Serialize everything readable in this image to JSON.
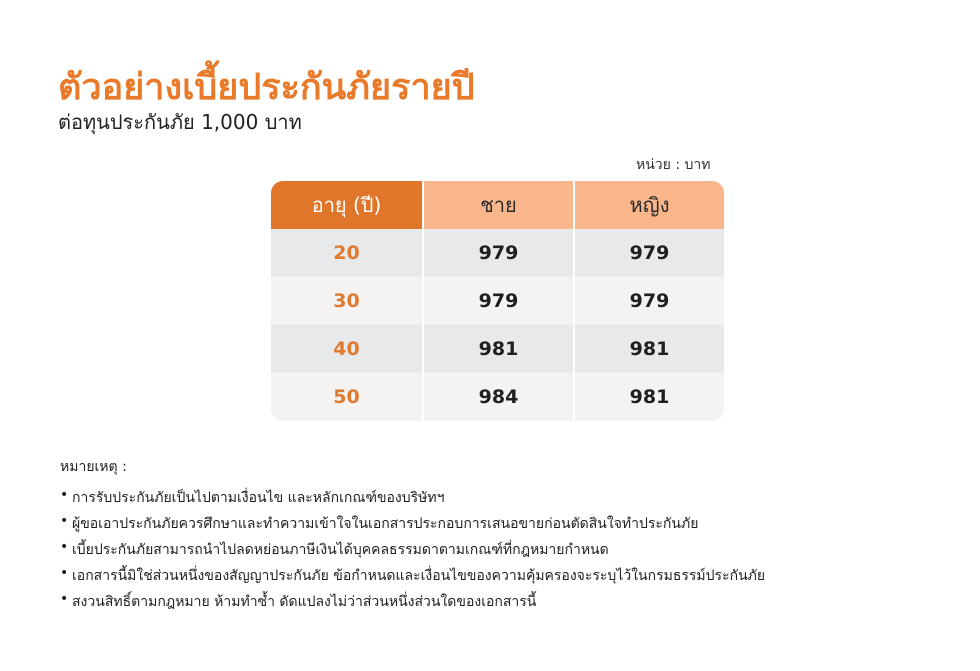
{
  "title": "ตัวอย่างเบี้ยประกันภัยรายปี",
  "subtitle": "ต่อทุนประกันภัย 1,000 บาท",
  "unit_label": "หน่วย : บาท",
  "table": {
    "headers": [
      "อายุ (ปี)",
      "ชาย",
      "หญิง"
    ],
    "rows": [
      {
        "age": "20",
        "male": "979",
        "female": "979"
      },
      {
        "age": "30",
        "male": "979",
        "female": "979"
      },
      {
        "age": "40",
        "male": "981",
        "female": "981"
      },
      {
        "age": "50",
        "male": "984",
        "female": "981"
      }
    ]
  },
  "notes": {
    "title": "หมายเหตุ :",
    "bullet": "•",
    "items": [
      "การรับประกันภัยเป็นไปตามเงื่อนไข และหลักเกณฑ์ของบริษัทฯ",
      "ผู้ขอเอาประกันภัยควรศึกษาและทำความเข้าใจในเอกสารประกอบการเสนอขายก่อนตัดสินใจทำประกันภัย",
      "เบี้ยประกันภัยสามารถนำไปลดหย่อนภาษีเงินได้บุคคลธรรมดาตามเกณฑ์ที่กฎหมายกำหนด",
      "เอกสารนี้มิใช่ส่วนหนึ่งของสัญญาประกันภัย ข้อกำหนดและเงื่อนไขของความคุ้มครองจะระบุไว้ในกรมธรรม์ประกันภัย",
      "สงวนสิทธิ์ตามกฎหมาย ห้ามทำซ้ำ ดัดแปลงไม่ว่าส่วนหนึ่งส่วนใดของเอกสารนี้"
    ]
  },
  "colors": {
    "accent": "#e87a2a",
    "header_primary": "#e0762a",
    "header_secondary": "#f8b68a",
    "row_odd": "#e8e9eb",
    "row_even": "#f4f3f2"
  }
}
